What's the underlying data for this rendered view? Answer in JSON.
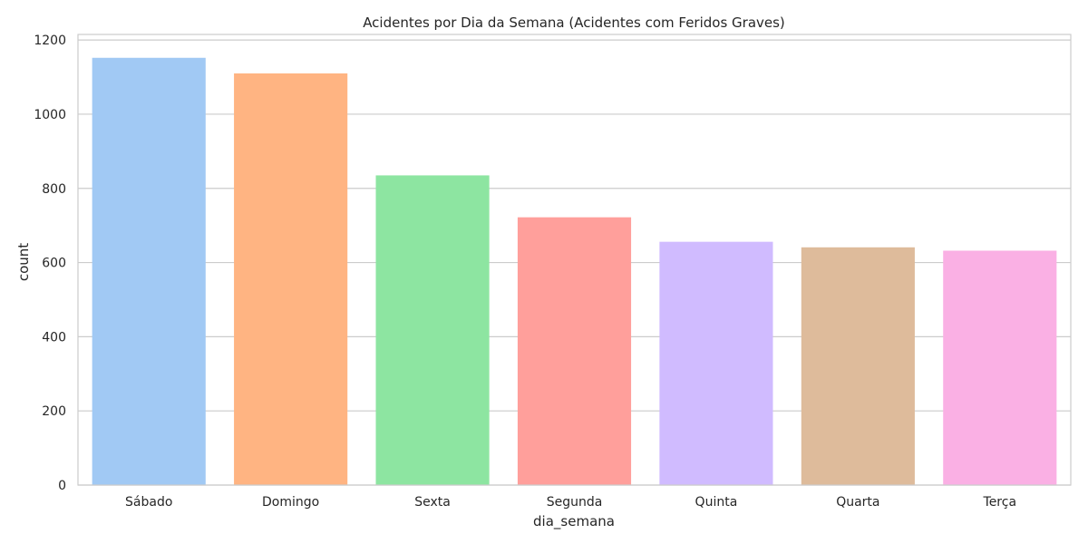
{
  "chart_data": {
    "type": "bar",
    "title": "Acidentes por Dia da Semana (Acidentes com Feridos Graves)",
    "xlabel": "dia_semana",
    "ylabel": "count",
    "categories": [
      "Sábado",
      "Domingo",
      "Sexta",
      "Segunda",
      "Quinta",
      "Quarta",
      "Terça"
    ],
    "values": [
      1152,
      1110,
      835,
      722,
      656,
      641,
      632
    ],
    "colors": [
      "#a1c9f4",
      "#ffb482",
      "#8de5a1",
      "#ff9f9b",
      "#d0bbff",
      "#debb9b",
      "#fab0e4"
    ],
    "ylim": [
      0,
      1215
    ],
    "yticks": [
      "0",
      "200",
      "400",
      "600",
      "800",
      "1000",
      "1200"
    ],
    "grid": true,
    "gridline_color": "#cccccc",
    "legend": "none"
  }
}
